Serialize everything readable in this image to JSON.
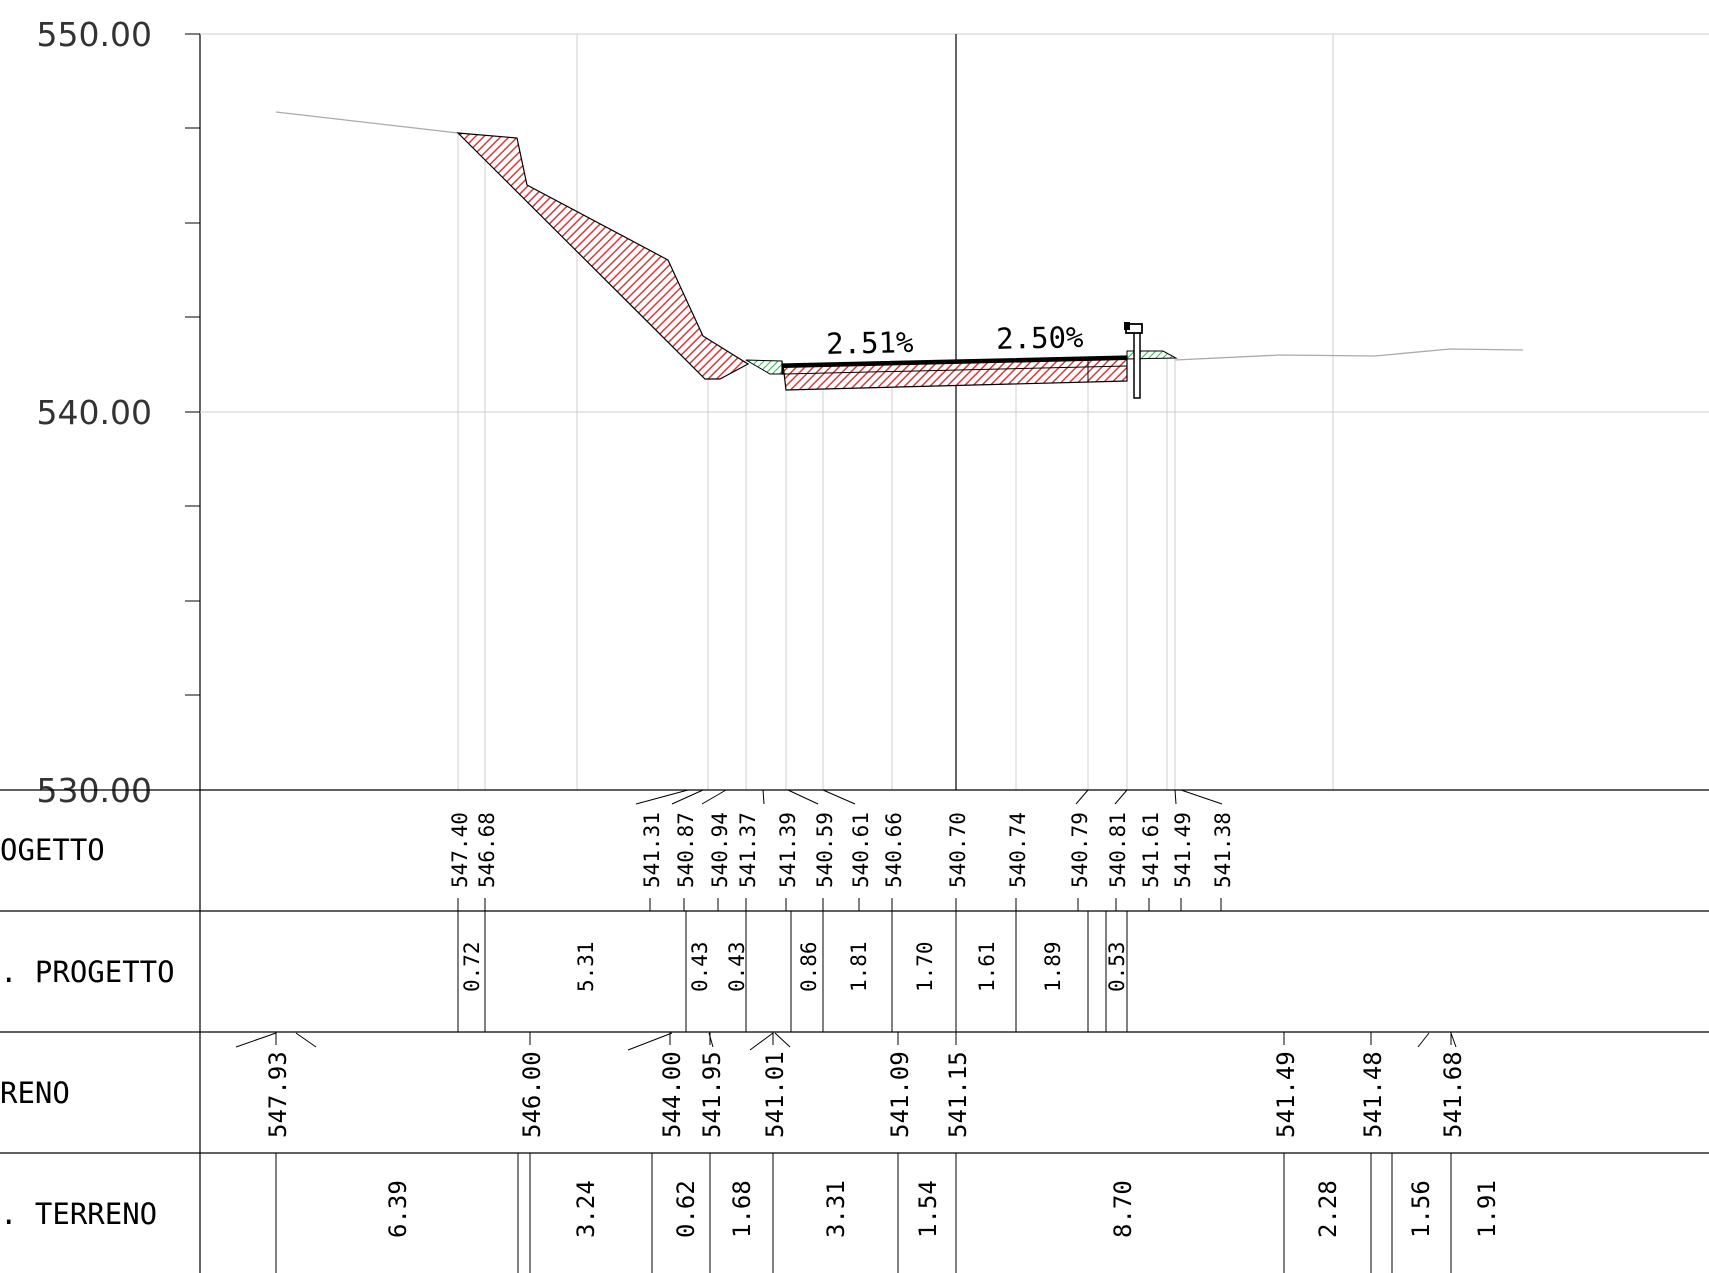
{
  "elevation_axis": {
    "max": 550,
    "min": 530,
    "labels": [
      "550.00",
      "540.00",
      "530.00"
    ]
  },
  "row_headers": [
    "OGETTO",
    ". PROGETTO",
    "RENO",
    ". TERRENO"
  ],
  "slopes": [
    "2.51%",
    "2.50%"
  ],
  "colors": {
    "cut": "#d83a3a",
    "fill": "#22bb44",
    "grid": "#cfcfcf"
  },
  "quote_progetto": [
    "547.40",
    "546.68",
    "541.31",
    "540.87",
    "540.94",
    "541.37",
    "541.39",
    "540.59",
    "540.61",
    "540.66",
    "540.70",
    "540.74",
    "540.79",
    "540.81",
    "541.61",
    "541.49",
    "541.38"
  ],
  "dist_progetto": [
    "0.72",
    "5.31",
    "0.43",
    "0.43",
    "0.86",
    "1.81",
    "1.70",
    "1.61",
    "1.89",
    "0.53"
  ],
  "quote_terreno": [
    "547.93",
    "546.00",
    "544.00",
    "541.95",
    "541.01",
    "541.09",
    "541.15",
    "541.49",
    "541.48",
    "541.68"
  ],
  "dist_terreno": [
    "6.39",
    "3.24",
    "0.62",
    "1.68",
    "3.31",
    "1.54",
    "8.70",
    "2.28",
    "1.56",
    "1.91"
  ]
}
